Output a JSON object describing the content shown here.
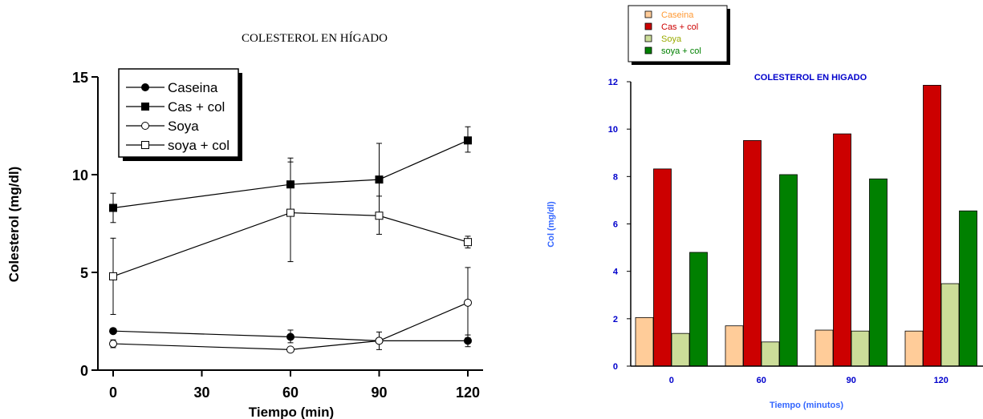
{
  "chart_data": [
    {
      "type": "line",
      "title": "COLESTEROL EN HÍGADO",
      "xlabel": "Tiempo (min)",
      "ylabel": "Colesterol (mg/dl)",
      "x": [
        0,
        60,
        90,
        120
      ],
      "xticks": [
        "0",
        "30",
        "60",
        "90",
        "120"
      ],
      "yticks": [
        "0",
        "5",
        "10",
        "15"
      ],
      "xlim": [
        0,
        120
      ],
      "ylim": [
        0,
        15
      ],
      "legend": "top-left",
      "series": [
        {
          "name": "Caseina",
          "marker": "filled-circle",
          "values": [
            2.0,
            1.7,
            1.5,
            1.5
          ],
          "err_up": [
            0,
            0.35,
            0,
            0.3
          ],
          "err_down": [
            0,
            0.3,
            0,
            0.3
          ]
        },
        {
          "name": "Cas + col",
          "marker": "filled-square",
          "values": [
            8.3,
            9.5,
            9.75,
            11.75
          ],
          "err_up": [
            0.75,
            1.35,
            1.85,
            0.7
          ],
          "err_down": [
            0.75,
            1.35,
            1.85,
            0.6
          ]
        },
        {
          "name": "Soya",
          "marker": "open-circle",
          "values": [
            1.35,
            1.05,
            1.5,
            3.45
          ],
          "err_up": [
            0.2,
            0,
            0.45,
            1.8
          ],
          "err_down": [
            0.2,
            0,
            0.45,
            1.8
          ]
        },
        {
          "name": "soya + col",
          "marker": "open-square",
          "values": [
            4.8,
            8.05,
            7.9,
            6.55
          ],
          "err_up": [
            1.95,
            2.6,
            1.0,
            0.3
          ],
          "err_down": [
            1.95,
            2.5,
            0.95,
            0.3
          ]
        }
      ]
    },
    {
      "type": "bar",
      "title": "COLESTEROL EN HIGADO",
      "xlabel": "Tiempo (minutos)",
      "ylabel": "Col (mg/dl)",
      "categories": [
        "0",
        "60",
        "90",
        "120"
      ],
      "yticks": [
        "0",
        "2",
        "4",
        "6",
        "8",
        "10",
        "12"
      ],
      "ylim": [
        0,
        12
      ],
      "legend": "top-left",
      "series": [
        {
          "name": "Caseina",
          "color": "#ffcc99",
          "values": [
            2.05,
            1.7,
            1.52,
            1.48
          ]
        },
        {
          "name": "Cas + col",
          "color": "#cc0000",
          "values": [
            8.32,
            9.52,
            9.8,
            11.85
          ]
        },
        {
          "name": "Soya",
          "color": "#ccdd99",
          "values": [
            1.38,
            1.02,
            1.48,
            3.48
          ]
        },
        {
          "name": "soya + col",
          "color": "#008000",
          "values": [
            4.8,
            8.08,
            7.9,
            6.55
          ]
        }
      ],
      "legend_text_colors": [
        "#ff9933",
        "#cc0000",
        "#99aa00",
        "#008000"
      ],
      "title_color": "#0000cc",
      "axis_label_color": "#3366ff",
      "tick_color": "#0000cc"
    }
  ]
}
